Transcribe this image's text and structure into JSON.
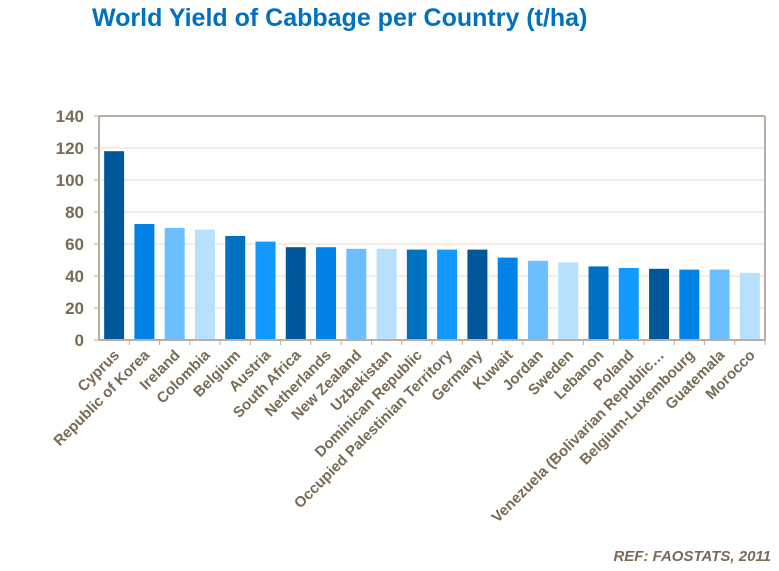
{
  "chart_data": {
    "type": "bar",
    "title": "World Yield of Cabbage per Country (t/ha)",
    "xlabel": "",
    "ylabel": "",
    "ylim": [
      0,
      140
    ],
    "yticks": [
      0,
      20,
      40,
      60,
      80,
      100,
      120,
      140
    ],
    "grid": true,
    "categories": [
      "Cyprus",
      "Republic of Korea",
      "Ireland",
      "Colombia",
      "Belgium",
      "Austria",
      "South Africa",
      "Netherlands",
      "New Zealand",
      "Uzbekistan",
      "Dominican Republic",
      "Occupied Palestinian Territory",
      "Germany",
      "Kuwait",
      "Jordan",
      "Sweden",
      "Lebanon",
      "Poland",
      "Venezuela (Bolivarian Republic…",
      "Belgium-Luxembourg",
      "Guatemala",
      "Morocco"
    ],
    "values": [
      118,
      72.5,
      70,
      69,
      65,
      61.5,
      58,
      58,
      57,
      57,
      56.5,
      56.5,
      56.5,
      51.5,
      49.5,
      48.5,
      46,
      45,
      44.5,
      44,
      44,
      42
    ],
    "colors": [
      "#00589B",
      "#0082E6",
      "#6BBFFF",
      "#B8E0FF",
      "#0070C0",
      "#1199FF"
    ],
    "annotation": "REF: FAOSTATS, 2011"
  }
}
